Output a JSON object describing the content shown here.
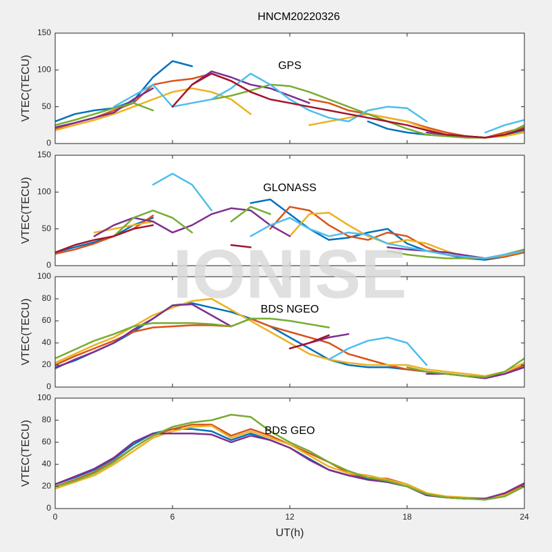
{
  "watermark": "IONISE",
  "chart_data": [
    {
      "type": "line",
      "title": "HNCM20220326",
      "annotation": "GPS",
      "ylabel": "VTEC(TECU)",
      "xlim": [
        0,
        24
      ],
      "xticks": [
        0,
        6,
        12,
        18,
        24
      ],
      "ylim": [
        0,
        150
      ],
      "yticks": [
        0,
        50,
        100,
        150
      ],
      "x": [
        0,
        1,
        2,
        3,
        4,
        5,
        6,
        7,
        8,
        9,
        10,
        11,
        12,
        13,
        14,
        15,
        16,
        17,
        18,
        19,
        20,
        21,
        22,
        23,
        24
      ],
      "series": [
        {
          "color": "#0072BD",
          "values": [
            30,
            40,
            45,
            48,
            58,
            90,
            112,
            105,
            null,
            null,
            null,
            null,
            null,
            null,
            null,
            null,
            30,
            20,
            15,
            12,
            10,
            10,
            8,
            12,
            18
          ]
        },
        {
          "color": "#D95319",
          "values": [
            20,
            28,
            35,
            45,
            55,
            80,
            85,
            88,
            95,
            85,
            70,
            null,
            null,
            60,
            55,
            45,
            40,
            35,
            30,
            22,
            15,
            10,
            8,
            15,
            22
          ]
        },
        {
          "color": "#EDB120",
          "values": [
            18,
            25,
            32,
            40,
            50,
            60,
            70,
            75,
            70,
            60,
            40,
            null,
            null,
            25,
            30,
            35,
            40,
            35,
            30,
            20,
            12,
            8,
            8,
            10,
            15
          ]
        },
        {
          "color": "#7E2F8E",
          "values": [
            22,
            28,
            35,
            42,
            60,
            75,
            null,
            80,
            98,
            90,
            80,
            75,
            65,
            55,
            null,
            null,
            null,
            null,
            null,
            15,
            12,
            10,
            8,
            12,
            20
          ]
        },
        {
          "color": "#77AC30",
          "values": [
            25,
            32,
            40,
            48,
            55,
            45,
            null,
            null,
            60,
            65,
            72,
            80,
            78,
            70,
            60,
            50,
            40,
            30,
            20,
            12,
            10,
            8,
            8,
            12,
            25
          ]
        },
        {
          "color": "#4DBEEE",
          "values": [
            null,
            null,
            null,
            50,
            65,
            80,
            50,
            55,
            60,
            75,
            95,
            80,
            60,
            45,
            35,
            30,
            45,
            50,
            48,
            30,
            null,
            null,
            15,
            25,
            32
          ]
        },
        {
          "color": "#A2142F",
          "values": [
            null,
            null,
            null,
            null,
            null,
            null,
            50,
            80,
            95,
            85,
            70,
            60,
            55,
            50,
            45,
            40,
            35,
            30,
            25,
            18,
            12,
            10,
            8,
            12,
            20
          ]
        }
      ]
    },
    {
      "type": "line",
      "annotation": "GLONASS",
      "ylabel": "VTEC(TECU)",
      "xlim": [
        0,
        24
      ],
      "xticks": [
        0,
        6,
        12,
        18,
        24
      ],
      "ylim": [
        0,
        150
      ],
      "yticks": [
        0,
        50,
        100,
        150
      ],
      "x": [
        0,
        1,
        2,
        3,
        4,
        5,
        6,
        7,
        8,
        9,
        10,
        11,
        12,
        13,
        14,
        15,
        16,
        17,
        18,
        19,
        20,
        21,
        22,
        23,
        24
      ],
      "series": [
        {
          "color": "#0072BD",
          "values": [
            18,
            25,
            32,
            40,
            55,
            65,
            null,
            null,
            null,
            null,
            85,
            90,
            70,
            50,
            35,
            38,
            45,
            50,
            30,
            20,
            15,
            10,
            8,
            12,
            20
          ]
        },
        {
          "color": "#D95319",
          "values": [
            16,
            22,
            30,
            40,
            50,
            68,
            null,
            null,
            null,
            null,
            null,
            50,
            80,
            75,
            55,
            40,
            35,
            45,
            40,
            25,
            15,
            12,
            10,
            12,
            18
          ]
        },
        {
          "color": "#EDB120",
          "values": [
            null,
            null,
            45,
            50,
            55,
            60,
            null,
            null,
            null,
            null,
            null,
            null,
            40,
            70,
            72,
            55,
            40,
            30,
            35,
            30,
            20,
            12,
            10,
            14,
            20
          ]
        },
        {
          "color": "#7E2F8E",
          "values": [
            null,
            null,
            40,
            55,
            65,
            60,
            45,
            55,
            70,
            78,
            75,
            55,
            40,
            null,
            null,
            null,
            null,
            25,
            22,
            20,
            18,
            14,
            10,
            15,
            22
          ]
        },
        {
          "color": "#77AC30",
          "values": [
            null,
            null,
            null,
            40,
            65,
            75,
            65,
            45,
            null,
            60,
            80,
            70,
            null,
            null,
            null,
            null,
            null,
            20,
            15,
            12,
            10,
            10,
            10,
            15,
            22
          ]
        },
        {
          "color": "#4DBEEE",
          "values": [
            null,
            null,
            null,
            null,
            null,
            110,
            125,
            110,
            75,
            null,
            40,
            55,
            65,
            50,
            40,
            45,
            42,
            30,
            25,
            20,
            15,
            12,
            10,
            15,
            20
          ]
        },
        {
          "color": "#A2142F",
          "values": [
            18,
            28,
            35,
            40,
            50,
            55,
            null,
            null,
            null,
            28,
            25,
            null,
            null,
            null,
            null,
            null,
            null,
            null,
            null,
            null,
            null,
            null,
            null,
            null,
            null
          ]
        }
      ]
    },
    {
      "type": "line",
      "annotation": "BDS NGEO",
      "ylabel": "VTEC(TECU)",
      "xlim": [
        0,
        24
      ],
      "xticks": [
        0,
        6,
        12,
        18,
        24
      ],
      "ylim": [
        0,
        100
      ],
      "yticks": [
        0,
        20,
        40,
        60,
        80,
        100
      ],
      "x": [
        0,
        1,
        2,
        3,
        4,
        5,
        6,
        7,
        8,
        9,
        10,
        11,
        12,
        13,
        14,
        15,
        16,
        17,
        18,
        19,
        20,
        21,
        22,
        23,
        24
      ],
      "series": [
        {
          "color": "#0072BD",
          "values": [
            18,
            24,
            32,
            40,
            50,
            62,
            74,
            76,
            72,
            68,
            62,
            55,
            45,
            35,
            25,
            20,
            18,
            18,
            16,
            14,
            12,
            10,
            9,
            12,
            18
          ]
        },
        {
          "color": "#D95319",
          "values": [
            20,
            28,
            35,
            42,
            50,
            54,
            55,
            56,
            56,
            55,
            62,
            55,
            50,
            45,
            40,
            30,
            25,
            20,
            16,
            14,
            12,
            10,
            8,
            12,
            20
          ]
        },
        {
          "color": "#EDB120",
          "values": [
            22,
            30,
            38,
            45,
            55,
            65,
            72,
            78,
            80,
            70,
            60,
            50,
            40,
            30,
            25,
            22,
            20,
            20,
            20,
            16,
            14,
            12,
            10,
            14,
            22
          ]
        },
        {
          "color": "#7E2F8E",
          "values": [
            17,
            25,
            32,
            40,
            52,
            62,
            74,
            75,
            65,
            55,
            null,
            null,
            null,
            40,
            45,
            48,
            null,
            null,
            null,
            12,
            12,
            10,
            8,
            12,
            18
          ]
        },
        {
          "color": "#77AC30",
          "values": [
            26,
            34,
            42,
            48,
            55,
            58,
            58,
            58,
            57,
            55,
            62,
            62,
            60,
            57,
            54,
            null,
            null,
            null,
            18,
            14,
            12,
            10,
            9,
            14,
            26
          ]
        },
        {
          "color": "#4DBEEE",
          "values": [
            null,
            null,
            null,
            null,
            null,
            null,
            null,
            null,
            null,
            null,
            null,
            null,
            null,
            null,
            25,
            35,
            42,
            45,
            40,
            20,
            null,
            null,
            null,
            null,
            null
          ]
        },
        {
          "color": "#A2142F",
          "values": [
            null,
            null,
            null,
            null,
            null,
            null,
            null,
            null,
            null,
            null,
            null,
            null,
            35,
            40,
            47,
            null,
            null,
            null,
            null,
            null,
            null,
            null,
            null,
            null,
            null
          ]
        }
      ]
    },
    {
      "type": "line",
      "annotation": "BDS GEO",
      "ylabel": "VTEC(TECU)",
      "xlabel": "UT(h)",
      "xlim": [
        0,
        24
      ],
      "xticks": [
        0,
        6,
        12,
        18,
        24
      ],
      "ylim": [
        0,
        100
      ],
      "yticks": [
        0,
        20,
        40,
        60,
        80,
        100
      ],
      "x": [
        0,
        1,
        2,
        3,
        4,
        5,
        6,
        7,
        8,
        9,
        10,
        11,
        12,
        13,
        14,
        15,
        16,
        17,
        18,
        19,
        20,
        21,
        22,
        23,
        24
      ],
      "series": [
        {
          "color": "#0072BD",
          "values": [
            22,
            28,
            35,
            45,
            58,
            68,
            72,
            72,
            70,
            62,
            68,
            62,
            55,
            45,
            35,
            30,
            27,
            24,
            20,
            12,
            10,
            9,
            9,
            12,
            20
          ]
        },
        {
          "color": "#D95319",
          "values": [
            20,
            26,
            33,
            43,
            55,
            66,
            72,
            76,
            76,
            66,
            72,
            66,
            58,
            50,
            42,
            32,
            28,
            27,
            22,
            14,
            10,
            9,
            9,
            13,
            22
          ]
        },
        {
          "color": "#EDB120",
          "values": [
            18,
            24,
            30,
            40,
            52,
            64,
            70,
            74,
            75,
            64,
            70,
            64,
            58,
            48,
            38,
            32,
            30,
            26,
            22,
            14,
            11,
            10,
            9,
            12,
            20
          ]
        },
        {
          "color": "#7E2F8E",
          "values": [
            22,
            29,
            36,
            46,
            60,
            68,
            68,
            68,
            67,
            60,
            66,
            62,
            55,
            44,
            35,
            30,
            26,
            24,
            20,
            12,
            10,
            9,
            9,
            14,
            23
          ]
        },
        {
          "color": "#77AC30",
          "values": [
            20,
            25,
            32,
            42,
            55,
            66,
            74,
            78,
            80,
            85,
            83,
            70,
            60,
            52,
            42,
            34,
            28,
            25,
            20,
            13,
            10,
            9,
            8,
            11,
            20
          ]
        }
      ]
    }
  ]
}
